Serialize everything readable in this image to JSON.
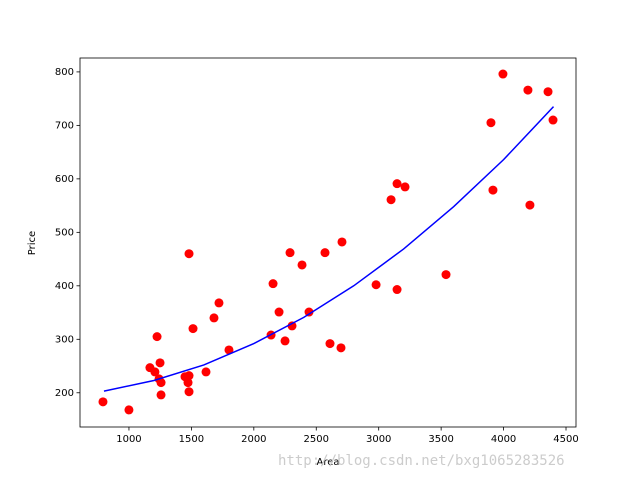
{
  "chart_data": {
    "type": "scatter",
    "xlabel": "Area",
    "ylabel": "Price",
    "xlim": [
      608,
      4580
    ],
    "ylim": [
      136,
      826
    ],
    "xticks": [
      1000,
      1500,
      2000,
      2500,
      3000,
      3500,
      4000,
      4500
    ],
    "yticks": [
      200,
      300,
      400,
      500,
      600,
      700,
      800
    ],
    "series": [
      {
        "type": "scatter",
        "color": "#ff0000",
        "x": [
          792,
          1000,
          1168,
          1208,
          1225,
          1249,
          1241,
          1257,
          1257,
          1449,
          1481,
          1473,
          1481,
          1481,
          1513,
          1617,
          1681,
          1721,
          1801,
          2138,
          2154,
          2202,
          2250,
          2290,
          2306,
          2386,
          2442,
          2570,
          2610,
          2698,
          2706,
          2979,
          3099,
          3147,
          3147,
          3211,
          3539,
          3899,
          3915,
          3995,
          4195,
          4211,
          4356,
          4396
        ],
        "values": [
          183,
          168,
          247,
          239,
          305,
          256,
          226,
          219,
          196,
          230,
          232,
          219,
          202,
          460,
          320,
          239,
          340,
          368,
          280,
          308,
          404,
          351,
          297,
          462,
          325,
          439,
          351,
          462,
          292,
          284,
          482,
          402,
          561,
          591,
          393,
          585,
          421,
          705,
          579,
          796,
          766,
          551,
          763,
          710
        ]
      },
      {
        "type": "line",
        "color": "#0000ff",
        "x": [
          800,
          1200,
          1600,
          2000,
          2400,
          2800,
          3200,
          3600,
          4000,
          4400
        ],
        "values": [
          203,
          223,
          252,
          292,
          341,
          400,
          469,
          548,
          636,
          735
        ]
      }
    ]
  },
  "watermark": "http://blog.csdn.net/bxg1065283526"
}
